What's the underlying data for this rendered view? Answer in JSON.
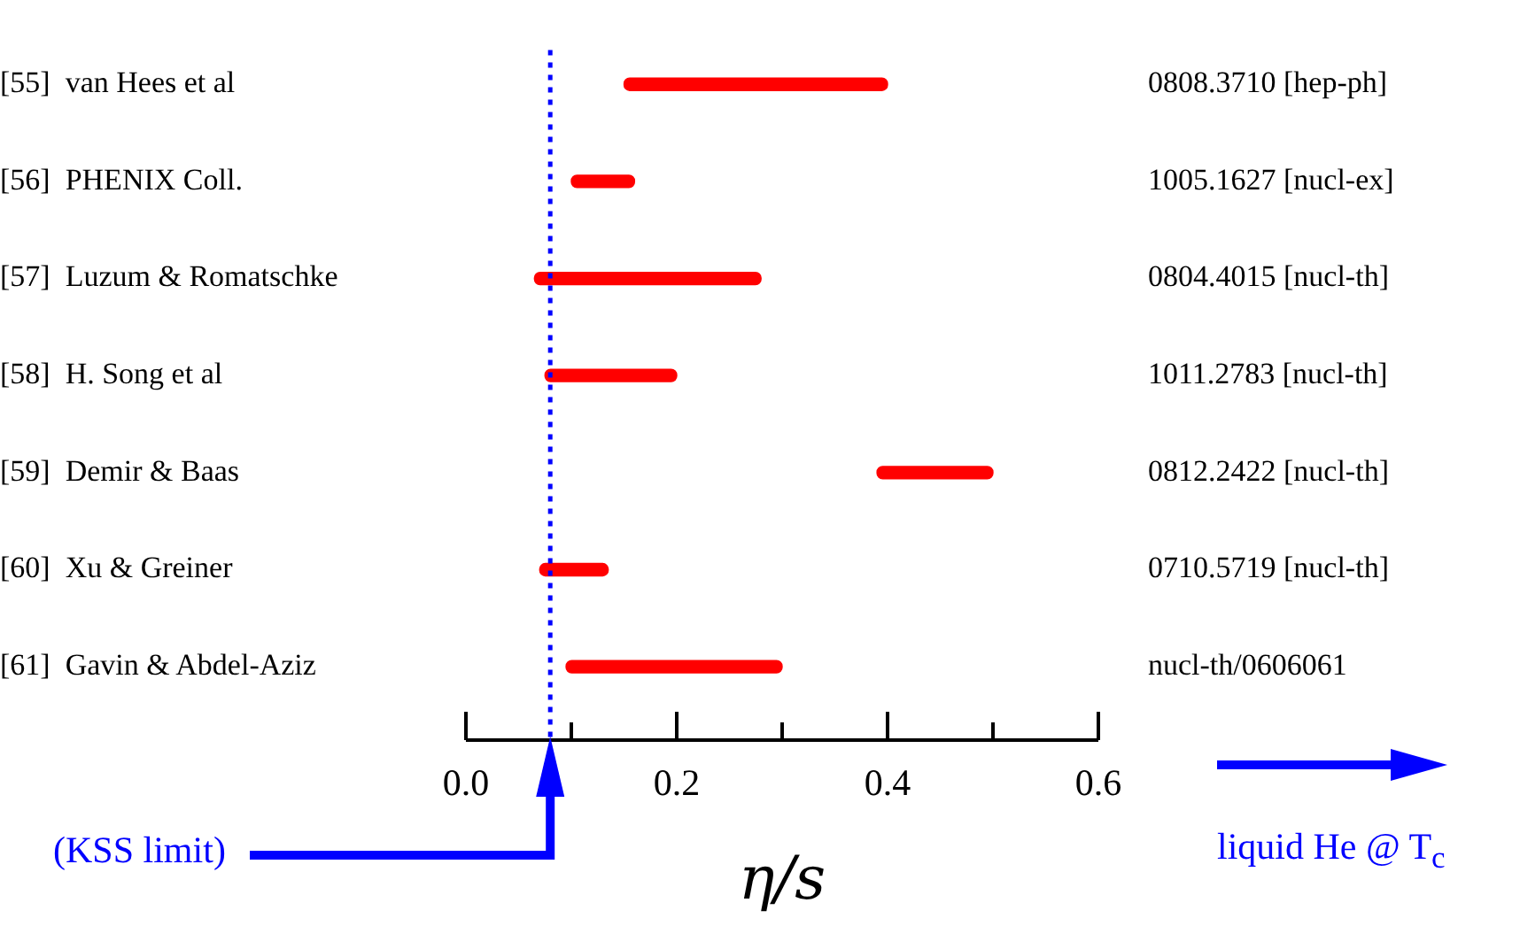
{
  "chart_data": {
    "type": "bar",
    "orientation": "horizontal",
    "xlabel": "η/s",
    "categories": [
      "[55]  van Hees et al",
      "[56]  PHENIX Coll.",
      "[57]  Luzum & Romatschke",
      "[58]  H. Song et al",
      "[59]  Demir & Baas",
      "[60]  Xu & Greiner",
      "[61]  Gavin & Abdel-Aziz"
    ],
    "base": [
      0.15,
      0.1,
      0.065,
      0.075,
      0.39,
      0.07,
      0.095
    ],
    "values": [
      0.25,
      0.06,
      0.215,
      0.125,
      0.11,
      0.065,
      0.205
    ],
    "color": "#ff0000",
    "xlim": [
      0,
      0.6
    ],
    "xticks": [
      {
        "value": 0,
        "label": "0.0"
      },
      {
        "value": 0.1,
        "label": null
      },
      {
        "value": 0.2,
        "label": "0.2"
      },
      {
        "value": 0.3,
        "label": null
      },
      {
        "value": 0.4,
        "label": "0.4"
      },
      {
        "value": 0.5,
        "label": null
      },
      {
        "value": 0.6,
        "label": "0.6"
      }
    ],
    "ref_lines": [
      {
        "axis": "x",
        "value": 0.08,
        "label": "(KSS limit)",
        "color": "#0000ff",
        "line_style": "dotted"
      }
    ],
    "annotations": [
      "0808.3710 [hep-ph]",
      "1005.1627 [nucl-ex]",
      "0804.4015 [nucl-th]",
      "1011.2783 [nucl-th]",
      "0812.2422 [nucl-th]",
      "0710.5719 [nucl-th]",
      "nucl-th/0606061",
      "liquid He @ T$_{c}$"
    ],
    "grid": false,
    "legend": false
  }
}
